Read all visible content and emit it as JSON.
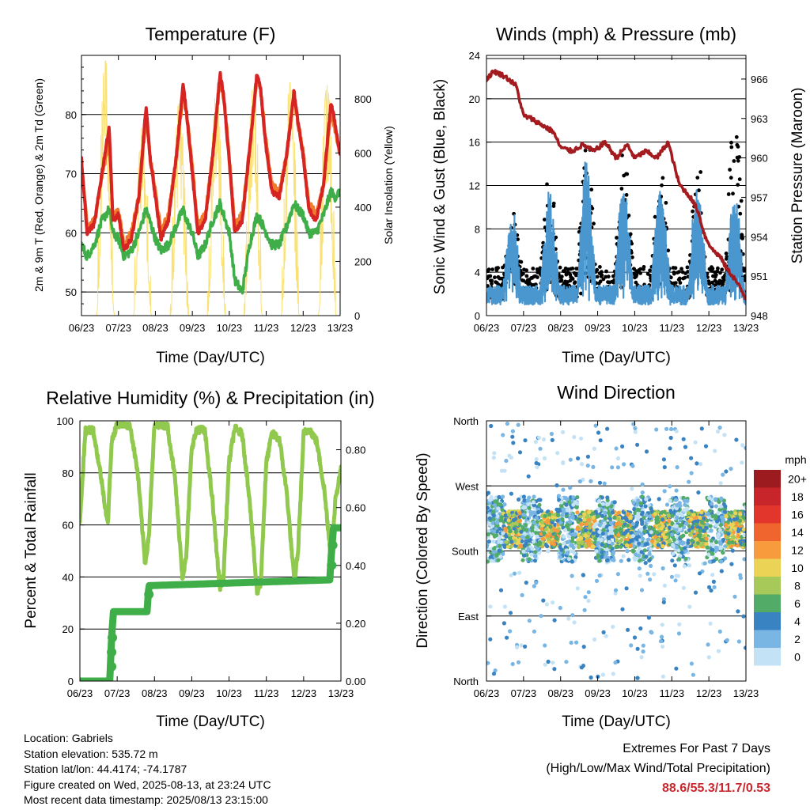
{
  "info": {
    "location": "Location: Gabriels",
    "elevation": "Station elevation: 535.72 m",
    "latlon": "Station lat/lon: 44.4174; -74.1787",
    "created": "Figure created on Wed, 2025-08-13, at 23:24 UTC",
    "latest": "Most recent data timestamp: 2025/08/13 23:15:00"
  },
  "extremes": {
    "title": "Extremes For Past 7 Days",
    "subtitle": "(High/Low/Max Wind/Total Precipitation)",
    "values": "88.6/55.3/11.7/0.53"
  },
  "colors": {
    "temp2m": "#d62423",
    "temp9m": "#f07a2e",
    "dewpoint": "#3fae48",
    "solar": "#fadf6e",
    "wind": "#4a96cf",
    "gust": "#000000",
    "pressure": "#a31b1f",
    "rh": "#90c94e",
    "precip": "#3fae48"
  },
  "chart_data": [
    {
      "type": "line",
      "title": "Temperature (F)",
      "xlabel": "Time (Day/UTC)",
      "ylabel": "2m & 9m T (Red, Orange) & 2m Td (Green)",
      "ylabel_right": "Solar Insolation (Yellow)",
      "x_ticks": [
        "06/23",
        "07/23",
        "08/23",
        "09/23",
        "10/23",
        "11/23",
        "12/23",
        "13/23"
      ],
      "ylim": [
        46,
        90
      ],
      "y_ticks": [
        50,
        60,
        70,
        80
      ],
      "ylim_right": [
        0,
        960
      ],
      "y_ticks_right": [
        0,
        200,
        400,
        600,
        800
      ],
      "x_days": [
        0,
        0.15,
        0.35,
        0.55,
        0.75,
        0.85,
        1,
        1.15,
        1.35,
        1.55,
        1.75,
        1.85,
        2,
        2.15,
        2.35,
        2.55,
        2.75,
        2.85,
        3,
        3.15,
        3.35,
        3.55,
        3.75,
        3.85,
        4,
        4.15,
        4.35,
        4.55,
        4.75,
        4.85,
        5,
        5.15,
        5.35,
        5.55,
        5.75,
        5.85,
        6,
        6.15,
        6.35,
        6.55,
        6.75,
        6.85,
        7
      ],
      "series": [
        {
          "name": "2m T",
          "values": [
            72.5,
            60,
            61.5,
            70,
            78,
            62,
            63,
            57,
            59,
            66,
            81.5,
            73,
            66,
            59,
            62,
            72,
            85,
            80,
            70,
            60,
            62,
            73,
            87,
            83,
            72,
            60,
            62,
            74,
            87,
            84,
            74,
            67,
            66,
            73,
            84,
            79,
            73,
            64,
            62,
            68,
            82,
            79,
            73
          ]
        },
        {
          "name": "9m T",
          "values": [
            72,
            61,
            62,
            69.5,
            76,
            63,
            63.5,
            58,
            60,
            66,
            80,
            73,
            67,
            60,
            63,
            72,
            84,
            80,
            71,
            61,
            63,
            73,
            86,
            83,
            73,
            61,
            63,
            74,
            86,
            84,
            75,
            68,
            67,
            73,
            83,
            79,
            73.5,
            65,
            63,
            68,
            81,
            78,
            73.5
          ]
        },
        {
          "name": "2m Td",
          "values": [
            58,
            56,
            58,
            62,
            64,
            60,
            59,
            56,
            57,
            60,
            64,
            62,
            59,
            57,
            58,
            61,
            64,
            62,
            60,
            56,
            58,
            62,
            65,
            63,
            60,
            52,
            50,
            58,
            63,
            62,
            60,
            58,
            58,
            61,
            65,
            64,
            63,
            60,
            60,
            63,
            67,
            66,
            67
          ]
        },
        {
          "name": "Solar Insolation",
          "daily_peak": [
            940,
            700,
            800,
            830,
            850,
            860,
            850
          ]
        }
      ]
    },
    {
      "type": "scatter",
      "title": "Winds (mph) & Pressure (mb)",
      "xlabel": "Time (Day/UTC)",
      "ylabel": "Sonic Wind & Gust (Blue, Black)",
      "ylabel_right": "Station Pressure (Maroon)",
      "x_ticks": [
        "06/23",
        "07/23",
        "08/23",
        "09/23",
        "10/23",
        "11/23",
        "12/23",
        "13/23"
      ],
      "ylim": [
        0,
        24
      ],
      "y_ticks": [
        0,
        4,
        8,
        12,
        16,
        20,
        24
      ],
      "ylim_right": [
        948,
        967.8
      ],
      "y_ticks_right": [
        948,
        951,
        954,
        957,
        960,
        963,
        966
      ],
      "series": [
        {
          "name": "Sonic Wind",
          "daily_peak": [
            7,
            9,
            12,
            10,
            10,
            10,
            9
          ]
        },
        {
          "name": "Gust",
          "daily_peak": [
            12,
            15,
            20,
            18,
            16,
            16,
            22
          ]
        },
        {
          "name": "Station Pressure",
          "x": [
            0,
            0.2,
            0.5,
            0.8,
            1,
            1.2,
            1.5,
            1.8,
            2,
            2.3,
            2.6,
            2.9,
            3.2,
            3.5,
            3.8,
            4,
            4.3,
            4.6,
            4.9,
            5.2,
            5.5,
            5.7,
            5.9,
            6.1,
            6.3,
            6.5,
            6.7,
            6.9,
            7
          ],
          "values": [
            966,
            966.6,
            966.2,
            965.5,
            963.2,
            963,
            962.5,
            962,
            960.8,
            960.5,
            961,
            960.5,
            961.2,
            960,
            961,
            960,
            960.5,
            960,
            961.2,
            958,
            957,
            956,
            954,
            953,
            952.5,
            951.5,
            950.8,
            949.8,
            949.3
          ]
        }
      ]
    },
    {
      "type": "line",
      "title": "Relative Humidity (%) & Precipitation (in)",
      "xlabel": "Time (Day/UTC)",
      "ylabel": "Percent & Total Rainfall",
      "x_ticks": [
        "06/23",
        "07/23",
        "08/23",
        "09/23",
        "10/23",
        "11/23",
        "12/23",
        "13/23"
      ],
      "ylim": [
        0,
        100
      ],
      "y_ticks": [
        0,
        20,
        40,
        60,
        80,
        100
      ],
      "ylim_right": [
        0,
        0.9
      ],
      "y_ticks_right": [
        "0.00",
        "0.20",
        "0.40",
        "0.60",
        "0.80"
      ],
      "series": [
        {
          "name": "Relative Humidity",
          "x": [
            0,
            0.15,
            0.35,
            0.55,
            0.75,
            0.85,
            1,
            1.15,
            1.35,
            1.55,
            1.75,
            1.85,
            2,
            2.15,
            2.35,
            2.55,
            2.75,
            2.85,
            3,
            3.15,
            3.35,
            3.55,
            3.75,
            3.85,
            4,
            4.15,
            4.35,
            4.55,
            4.75,
            4.85,
            5,
            5.15,
            5.35,
            5.55,
            5.75,
            5.85,
            6,
            6.15,
            6.35,
            6.55,
            6.75,
            6.85,
            7
          ],
          "values": [
            62,
            96,
            97,
            80,
            60,
            92,
            99,
            99,
            98,
            80,
            45,
            56,
            98,
            99,
            98,
            78,
            40,
            47,
            90,
            97,
            96,
            70,
            36,
            40,
            84,
            97,
            95,
            70,
            34,
            38,
            84,
            95,
            93,
            72,
            38,
            50,
            95,
            97,
            92,
            74,
            45,
            70,
            81
          ]
        },
        {
          "name": "Total Precipitation",
          "x": [
            0,
            0.8,
            0.85,
            0.9,
            1.8,
            1.85,
            6.7,
            6.75,
            6.8,
            7
          ],
          "values": [
            0,
            0,
            0.15,
            0.24,
            0.24,
            0.33,
            0.35,
            0.45,
            0.53,
            0.53
          ]
        }
      ]
    },
    {
      "type": "scatter",
      "title": "Wind Direction",
      "xlabel": "Time (Day/UTC)",
      "ylabel": "Direction (Colored By Speed)",
      "x_ticks": [
        "06/23",
        "07/23",
        "08/23",
        "09/23",
        "10/23",
        "11/23",
        "12/23",
        "13/23"
      ],
      "y_categories": [
        "North",
        "East",
        "South",
        "West",
        "North"
      ],
      "legend_title": "mph",
      "legend_labels": [
        "20+",
        "18",
        "16",
        "14",
        "12",
        "10",
        "8",
        "6",
        "4",
        "2",
        "0"
      ],
      "legend_colors": [
        "#9b1b1e",
        "#c8252b",
        "#e2352b",
        "#f0652d",
        "#f89b3d",
        "#ebd455",
        "#a6c95a",
        "#52ac68",
        "#3a83c2",
        "#79b6e3",
        "#c3e2f5"
      ]
    }
  ]
}
